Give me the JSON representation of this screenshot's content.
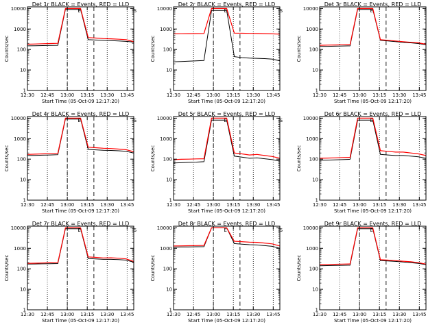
{
  "window_title": "",
  "colors": {
    "events": "#000000",
    "lld": "#ff0000",
    "axes": "#000000",
    "background": "#ffffff"
  },
  "chart_data": [
    {
      "type": "line",
      "title": "Det 1r BLACK = Events, RED = LLD",
      "xlabel": "Start Time (05-Oct-09 12:17:20)",
      "ylabel": "Counts/sec",
      "yscale": "log",
      "ylim": [
        1,
        12000
      ],
      "xticks": [
        "12:30",
        "12:45",
        "13:00",
        "13:15",
        "13:30",
        "13:45"
      ],
      "yticks": [
        "1",
        "10",
        "100",
        "1000",
        "10000"
      ],
      "markers": [
        {
          "label": "S",
          "x_min": 49
        },
        {
          "label": "E",
          "x_min": 117
        }
      ],
      "dotted_x_min": [
        15,
        30,
        45,
        60,
        75,
        90,
        105,
        120
      ],
      "dashed_x_min": [
        45,
        65
      ],
      "series": [
        {
          "name": "Events",
          "values": [
            150,
            152,
            155,
            158,
            160,
            9000,
            9000,
            9000,
            300,
            290,
            280,
            272,
            260,
            248,
            230
          ]
        },
        {
          "name": "LLD",
          "values": [
            180,
            185,
            190,
            195,
            200,
            10000,
            10000,
            10000,
            380,
            360,
            340,
            332,
            318,
            300,
            240
          ]
        }
      ]
    },
    {
      "type": "line",
      "title": "Det 2r BLACK = Events, RED = LLD",
      "xlabel": "Start Time (05-Oct-09 12:17:20)",
      "ylabel": "Counts/sec",
      "yscale": "log",
      "ylim": [
        1,
        12000
      ],
      "xticks": [
        "12:30",
        "12:45",
        "13:00",
        "13:15",
        "13:30",
        "13:45"
      ],
      "yticks": [
        "1",
        "10",
        "100",
        "1000",
        "10000"
      ],
      "markers": [
        {
          "label": "S",
          "x_min": 49
        },
        {
          "label": "E",
          "x_min": 117
        }
      ],
      "dotted_x_min": [
        15,
        30,
        45,
        60,
        75,
        90,
        105,
        120
      ],
      "dashed_x_min": [
        45,
        65
      ],
      "series": [
        {
          "name": "Events",
          "values": [
            25,
            26,
            27,
            28,
            29,
            8000,
            8000,
            8000,
            45,
            40,
            38,
            37,
            36,
            34,
            28
          ]
        },
        {
          "name": "LLD",
          "values": [
            580,
            585,
            590,
            595,
            600,
            10000,
            10000,
            10000,
            630,
            620,
            610,
            600,
            590,
            580,
            560
          ]
        }
      ]
    },
    {
      "type": "line",
      "title": "Det 3r BLACK = Events, RED = LLD",
      "xlabel": "Start Time (05-Oct-09 12:17:20)",
      "ylabel": "Counts/sec",
      "yscale": "log",
      "ylim": [
        1,
        12000
      ],
      "xticks": [
        "12:30",
        "12:45",
        "13:00",
        "13:15",
        "13:30",
        "13:45"
      ],
      "yticks": [
        "1",
        "10",
        "100",
        "1000",
        "10000"
      ],
      "markers": [
        {
          "label": "S",
          "x_min": 49
        },
        {
          "label": "E",
          "x_min": 117
        }
      ],
      "dotted_x_min": [
        15,
        30,
        45,
        60,
        75,
        90,
        105,
        120
      ],
      "dashed_x_min": [
        45,
        65
      ],
      "series": [
        {
          "name": "Events",
          "values": [
            140,
            142,
            145,
            148,
            150,
            9000,
            9000,
            9000,
            280,
            260,
            240,
            220,
            210,
            195,
            170
          ]
        },
        {
          "name": "LLD",
          "values": [
            160,
            163,
            166,
            170,
            172,
            10000,
            10000,
            10000,
            300,
            280,
            260,
            240,
            225,
            210,
            180
          ]
        }
      ]
    },
    {
      "type": "line",
      "title": "Det 4r BLACK = Events, RED = LLD",
      "xlabel": "Start Time (05-Oct-09 12:17:20)",
      "ylabel": "Counts/sec",
      "yscale": "log",
      "ylim": [
        1,
        12000
      ],
      "xticks": [
        "12:30",
        "12:45",
        "13:00",
        "13:15",
        "13:30",
        "13:45"
      ],
      "yticks": [
        "1",
        "10",
        "100",
        "1000",
        "10000"
      ],
      "markers": [
        {
          "label": "S",
          "x_min": 49
        },
        {
          "label": "E",
          "x_min": 117
        }
      ],
      "dotted_x_min": [
        15,
        30,
        45,
        60,
        75,
        90,
        105,
        120
      ],
      "dashed_x_min": [
        45,
        65
      ],
      "series": [
        {
          "name": "Events",
          "values": [
            150,
            153,
            156,
            160,
            165,
            9000,
            9000,
            9000,
            300,
            285,
            270,
            265,
            255,
            240,
            200
          ]
        },
        {
          "name": "LLD",
          "values": [
            170,
            175,
            180,
            185,
            190,
            10000,
            10000,
            10000,
            380,
            360,
            340,
            330,
            310,
            290,
            230
          ]
        }
      ]
    },
    {
      "type": "line",
      "title": "Det 5r BLACK = Events, RED = LLD",
      "xlabel": "Start Time (05-Oct-09 12:17:20)",
      "ylabel": "Counts/sec",
      "yscale": "log",
      "ylim": [
        1,
        12000
      ],
      "xticks": [
        "12:30",
        "12:45",
        "13:00",
        "13:15",
        "13:30",
        "13:45"
      ],
      "yticks": [
        "1",
        "10",
        "100",
        "1000",
        "10000"
      ],
      "markers": [
        {
          "label": "S",
          "x_min": 49
        },
        {
          "label": "E",
          "x_min": 117
        }
      ],
      "dotted_x_min": [
        15,
        30,
        45,
        60,
        75,
        90,
        105,
        120
      ],
      "dashed_x_min": [
        45,
        65
      ],
      "series": [
        {
          "name": "Events",
          "values": [
            65,
            67,
            70,
            72,
            75,
            8000,
            8000,
            8000,
            140,
            125,
            110,
            115,
            105,
            95,
            80
          ]
        },
        {
          "name": "LLD",
          "values": [
            95,
            98,
            100,
            103,
            105,
            10000,
            10000,
            10000,
            200,
            180,
            160,
            170,
            150,
            135,
            110
          ]
        }
      ]
    },
    {
      "type": "line",
      "title": "Det 6r BLACK = Events, RED = LLD",
      "xlabel": "Start Time (05-Oct-09 12:17:20)",
      "ylabel": "Counts/sec",
      "yscale": "log",
      "ylim": [
        1,
        12000
      ],
      "xticks": [
        "12:30",
        "12:45",
        "13:00",
        "13:15",
        "13:30",
        "13:45"
      ],
      "yticks": [
        "1",
        "10",
        "100",
        "1000",
        "10000"
      ],
      "markers": [
        {
          "label": "S",
          "x_min": 49
        },
        {
          "label": "E",
          "x_min": 117
        }
      ],
      "dotted_x_min": [
        15,
        30,
        45,
        60,
        75,
        90,
        105,
        120
      ],
      "dashed_x_min": [
        45,
        65
      ],
      "series": [
        {
          "name": "Events",
          "values": [
            88,
            90,
            92,
            95,
            98,
            8000,
            8000,
            8000,
            170,
            160,
            150,
            150,
            140,
            130,
            110
          ]
        },
        {
          "name": "LLD",
          "values": [
            110,
            113,
            116,
            120,
            122,
            10000,
            10000,
            10000,
            260,
            240,
            220,
            220,
            200,
            180,
            150
          ]
        }
      ]
    },
    {
      "type": "line",
      "title": "Det 7r BLACK = Events, RED = LLD",
      "xlabel": "Start Time (05-Oct-09 12:17:20)",
      "ylabel": "Counts/sec",
      "yscale": "log",
      "ylim": [
        1,
        12000
      ],
      "xticks": [
        "12:30",
        "12:45",
        "13:00",
        "13:15",
        "13:30",
        "13:45"
      ],
      "yticks": [
        "1",
        "10",
        "100",
        "1000",
        "10000"
      ],
      "markers": [
        {
          "label": "S",
          "x_min": 49
        },
        {
          "label": "E",
          "x_min": 117
        }
      ],
      "dotted_x_min": [
        15,
        30,
        45,
        60,
        75,
        90,
        105,
        120
      ],
      "dashed_x_min": [
        45,
        65
      ],
      "series": [
        {
          "name": "Events",
          "values": [
            170,
            172,
            175,
            178,
            180,
            9000,
            9000,
            9000,
            320,
            305,
            290,
            290,
            280,
            265,
            210
          ]
        },
        {
          "name": "LLD",
          "values": [
            185,
            188,
            192,
            196,
            200,
            10000,
            10000,
            10000,
            380,
            360,
            340,
            345,
            330,
            305,
            230
          ]
        }
      ]
    },
    {
      "type": "line",
      "title": "Det 8r BLACK = Events, RED = LLD",
      "xlabel": "Start Time (05-Oct-09 12:17:20)",
      "ylabel": "Counts/sec",
      "yscale": "log",
      "ylim": [
        1,
        12000
      ],
      "xticks": [
        "12:30",
        "12:45",
        "13:00",
        "13:15",
        "13:30",
        "13:45"
      ],
      "yticks": [
        "1",
        "10",
        "100",
        "1000",
        "10000"
      ],
      "markers": [
        {
          "label": "S",
          "x_min": 49
        },
        {
          "label": "E",
          "x_min": 117
        }
      ],
      "dotted_x_min": [
        15,
        30,
        45,
        60,
        75,
        90,
        105,
        120
      ],
      "dashed_x_min": [
        45,
        65
      ],
      "series": [
        {
          "name": "Events",
          "values": [
            1150,
            1160,
            1175,
            1190,
            1200,
            10000,
            10000,
            10000,
            1700,
            1600,
            1500,
            1450,
            1350,
            1250,
            1000
          ]
        },
        {
          "name": "LLD",
          "values": [
            1300,
            1320,
            1340,
            1360,
            1380,
            10000,
            10000,
            10000,
            2200,
            2100,
            2000,
            1950,
            1800,
            1650,
            1300
          ]
        }
      ]
    },
    {
      "type": "line",
      "title": "Det 9r BLACK = Events, RED = LLD",
      "xlabel": "Start Time (05-Oct-09 12:17:20)",
      "ylabel": "Counts/sec",
      "yscale": "log",
      "ylim": [
        1,
        12000
      ],
      "xticks": [
        "12:30",
        "12:45",
        "13:00",
        "13:15",
        "13:30",
        "13:45"
      ],
      "yticks": [
        "1",
        "10",
        "100",
        "1000",
        "10000"
      ],
      "markers": [
        {
          "label": "S",
          "x_min": 49
        },
        {
          "label": "E",
          "x_min": 117
        }
      ],
      "dotted_x_min": [
        15,
        30,
        45,
        60,
        75,
        90,
        105,
        120
      ],
      "dashed_x_min": [
        45,
        65
      ],
      "series": [
        {
          "name": "Events",
          "values": [
            140,
            143,
            146,
            148,
            150,
            9000,
            9000,
            9000,
            250,
            240,
            230,
            215,
            200,
            185,
            160
          ]
        },
        {
          "name": "LLD",
          "values": [
            160,
            163,
            166,
            170,
            172,
            10000,
            10000,
            10000,
            280,
            265,
            250,
            235,
            220,
            200,
            170
          ]
        }
      ]
    }
  ]
}
